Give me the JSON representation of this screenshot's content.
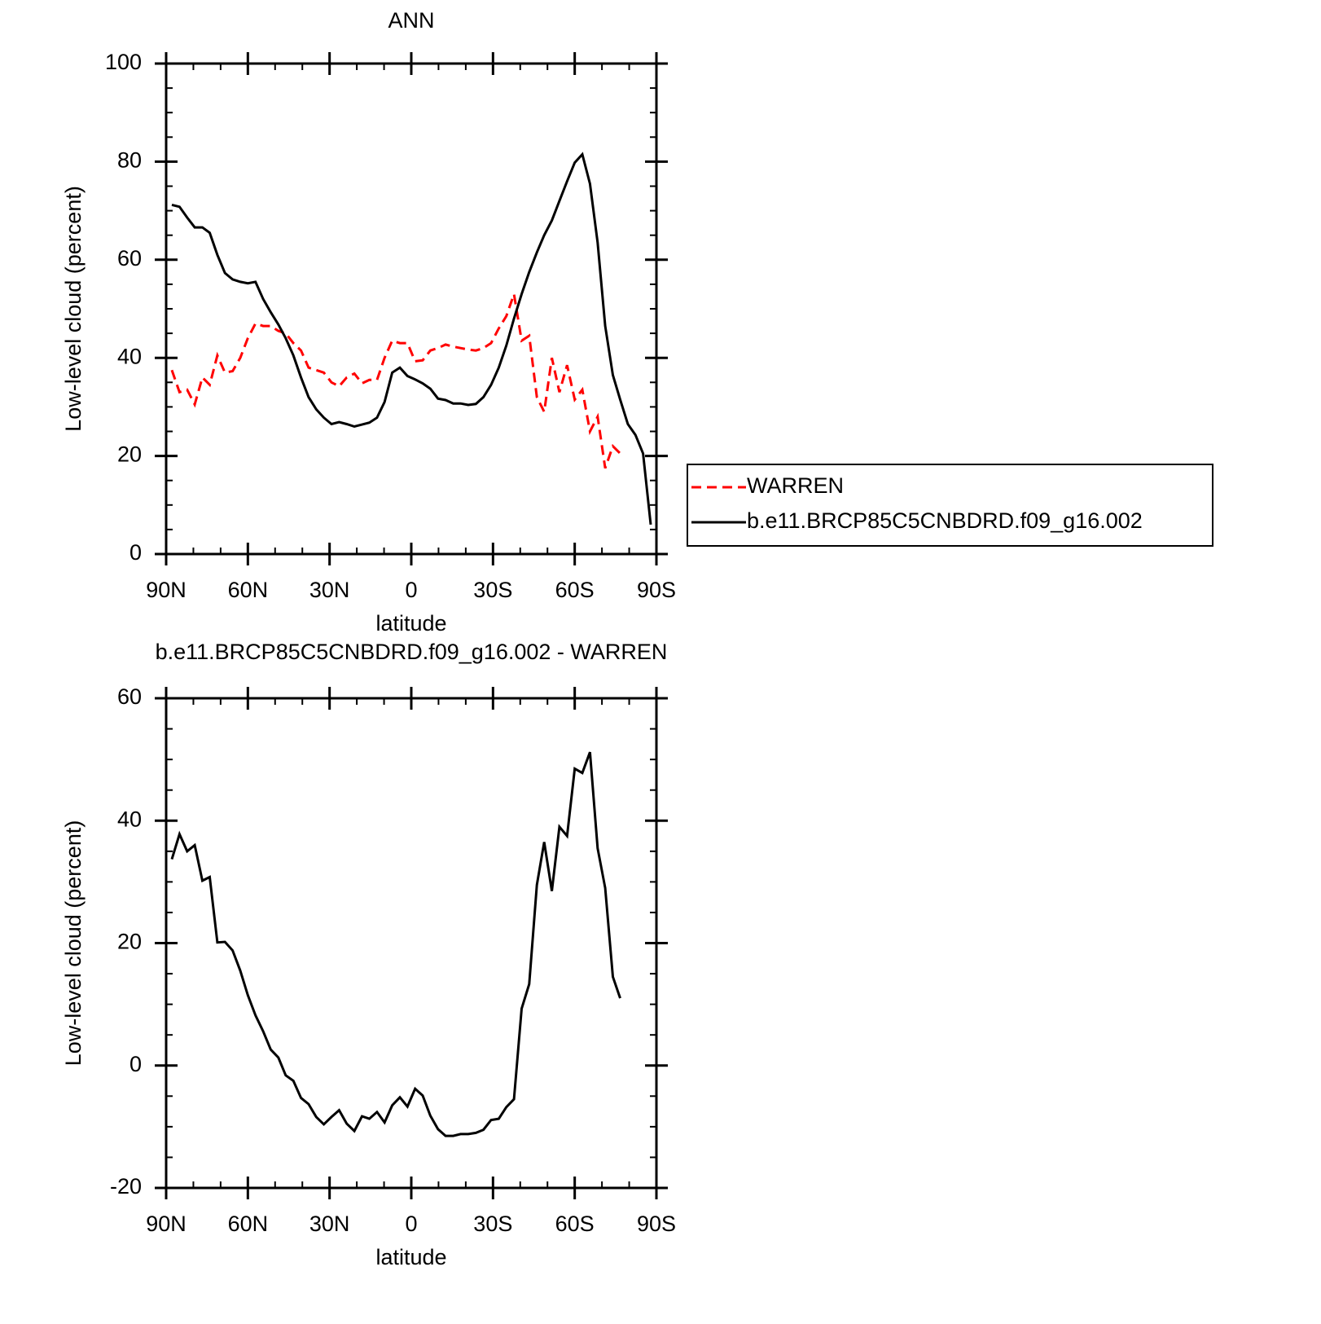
{
  "chart_data": [
    {
      "type": "line",
      "title": "ANN",
      "xlabel": "latitude",
      "ylabel": "Low-level cloud (percent)",
      "x": [
        87.9,
        85.1,
        82.3,
        79.5,
        76.7,
        74.0,
        71.2,
        68.4,
        65.6,
        62.8,
        60.0,
        57.2,
        54.4,
        51.6,
        48.8,
        46.1,
        43.3,
        40.5,
        37.7,
        34.9,
        32.1,
        29.3,
        26.5,
        23.7,
        20.9,
        18.1,
        15.4,
        12.6,
        9.8,
        7.0,
        4.2,
        1.4,
        -1.4,
        -4.2,
        -7.0,
        -9.8,
        -12.6,
        -15.4,
        -18.1,
        -20.9,
        -23.7,
        -26.5,
        -29.3,
        -32.1,
        -34.9,
        -37.7,
        -40.5,
        -43.3,
        -46.1,
        -48.8,
        -51.6,
        -54.4,
        -57.2,
        -60.0,
        -62.8,
        -65.6,
        -68.4,
        -71.2,
        -74.0,
        -76.7,
        -79.5,
        -82.3,
        -85.1,
        -87.9
      ],
      "series": [
        {
          "name": "WARREN",
          "color": "#ff0000",
          "line_style": "dashed",
          "values": [
            37.5,
            33,
            33.5,
            30.5,
            36,
            34.5,
            40.5,
            37,
            37.3,
            40,
            44,
            47,
            46.5,
            46.5,
            45.5,
            45,
            43,
            41.5,
            38,
            37.5,
            37,
            35,
            34.2,
            36,
            36.8,
            34.8,
            35.5,
            35.5,
            40,
            43.5,
            43,
            43,
            39.3,
            39.5,
            41.5,
            42,
            42.7,
            42.3,
            42,
            41.7,
            41.5,
            42,
            43,
            46,
            48.5,
            53,
            43.5,
            44.5,
            32,
            29,
            40,
            33,
            38.5,
            31.5,
            33.5,
            25,
            28,
            17.5,
            22,
            20.5,
            null,
            null,
            null,
            null
          ]
        },
        {
          "name": "b.e11.BRCP85C5CNBDRD.f09_g16.002",
          "color": "#000000",
          "line_style": "solid",
          "values": [
            71.2,
            70.8,
            68.6,
            66.6,
            66.6,
            65.5,
            61,
            57.3,
            56,
            55.5,
            55.2,
            55.5,
            52,
            49.3,
            46.8,
            44,
            40.5,
            36,
            32,
            29.5,
            27.8,
            26.5,
            26.9,
            26.5,
            26,
            26.4,
            26.8,
            27.8,
            31,
            37,
            38,
            36.3,
            35.6,
            34.8,
            33.7,
            31.7,
            31.4,
            30.7,
            30.7,
            30.4,
            30.6,
            32,
            34.5,
            38,
            42.5,
            48,
            53,
            57.5,
            61.5,
            65,
            68,
            72,
            76,
            79.8,
            81.5,
            75.5,
            63.5,
            46.5,
            36.5,
            31.5,
            26.5,
            24.3,
            20.5,
            6
          ]
        }
      ],
      "xlim": [
        90,
        -90
      ],
      "xticks": [
        {
          "value": 90,
          "label": "90N"
        },
        {
          "value": 60,
          "label": "60N"
        },
        {
          "value": 30,
          "label": "30N"
        },
        0,
        {
          "value": -30,
          "label": "30S"
        },
        {
          "value": -60,
          "label": "60S"
        },
        {
          "value": -90,
          "label": "90S"
        }
      ],
      "ylim": [
        0,
        100
      ],
      "yticks": [
        0,
        20,
        40,
        60,
        80,
        100
      ],
      "legend": "right"
    },
    {
      "type": "line",
      "title": "b.e11.BRCP85C5CNBDRD.f09_g16.002 - WARREN",
      "xlabel": "latitude",
      "ylabel": "Low-level cloud (percent)",
      "x": [
        87.9,
        85.1,
        82.3,
        79.5,
        76.7,
        74.0,
        71.2,
        68.4,
        65.6,
        62.8,
        60.0,
        57.2,
        54.4,
        51.6,
        48.8,
        46.1,
        43.3,
        40.5,
        37.7,
        34.9,
        32.1,
        29.3,
        26.5,
        23.7,
        20.9,
        18.1,
        15.4,
        12.6,
        9.8,
        7.0,
        4.2,
        1.4,
        -1.4,
        -4.2,
        -7.0,
        -9.8,
        -12.6,
        -15.4,
        -18.1,
        -20.9,
        -23.7,
        -26.5,
        -29.3,
        -32.1,
        -34.9,
        -37.7,
        -40.5,
        -43.3,
        -46.1,
        -48.8,
        -51.6,
        -54.4,
        -57.2,
        -60.0,
        -62.8,
        -65.6,
        -68.4,
        -71.2,
        -74.0,
        -76.7
      ],
      "series": [
        {
          "color": "#000000",
          "line_style": "solid",
          "values": [
            33.7,
            37.8,
            35,
            36,
            30.2,
            30.8,
            20.1,
            20.2,
            18.8,
            15.5,
            11.5,
            8.2,
            5.6,
            2.6,
            1.3,
            -1.6,
            -2.5,
            -5.3,
            -6.3,
            -8.4,
            -9.6,
            -8.4,
            -7.3,
            -9.5,
            -10.7,
            -8.3,
            -8.7,
            -7.6,
            -9.3,
            -6.5,
            -5.2,
            -6.7,
            -3.8,
            -4.9,
            -8.2,
            -10.4,
            -11.5,
            -11.5,
            -11.2,
            -11.2,
            -11,
            -10.5,
            -8.9,
            -8.7,
            -6.8,
            -5.5,
            9.3,
            13.3,
            29.5,
            36.5,
            28.5,
            39,
            37.5,
            48.5,
            47.8,
            51.2,
            35.5,
            29,
            14.5,
            11
          ]
        }
      ],
      "xlim": [
        90,
        -90
      ],
      "xticks": [
        {
          "value": 90,
          "label": "90N"
        },
        {
          "value": 60,
          "label": "60N"
        },
        {
          "value": 30,
          "label": "30N"
        },
        0,
        {
          "value": -30,
          "label": "30S"
        },
        {
          "value": -60,
          "label": "60S"
        },
        {
          "value": -90,
          "label": "90S"
        }
      ],
      "ylim": [
        -20,
        60
      ],
      "yticks": [
        -20,
        0,
        20,
        40,
        60
      ]
    }
  ]
}
